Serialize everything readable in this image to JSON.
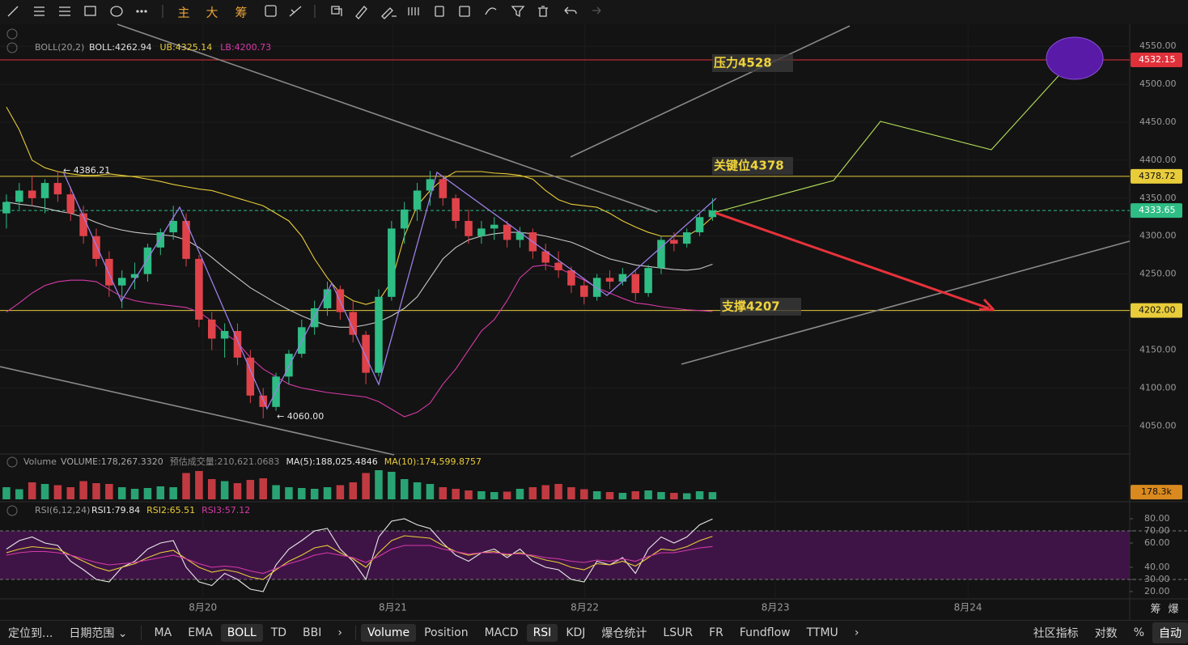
{
  "toolbar": {
    "labels": [
      "主",
      "大",
      "筹"
    ]
  },
  "chart_data": [
    {
      "type": "candlestick",
      "legend_title": "BOLL(20,2)",
      "x": [
        0,
        1,
        2,
        3,
        4,
        5,
        6,
        7,
        8,
        9,
        10,
        11,
        12,
        13,
        14,
        15,
        16,
        17,
        18,
        19,
        20,
        21,
        22,
        23,
        24,
        25,
        26,
        27,
        28,
        29,
        30,
        31,
        32,
        33,
        34,
        35,
        36,
        37,
        38,
        39,
        40,
        41,
        42,
        43,
        44,
        45,
        46,
        47,
        48,
        49,
        50,
        51,
        52,
        53,
        54,
        55
      ],
      "open": [
        4330,
        4345,
        4360,
        4350,
        4370,
        4355,
        4330,
        4300,
        4270,
        4235,
        4245,
        4250,
        4285,
        4305,
        4320,
        4270,
        4190,
        4165,
        4175,
        4140,
        4090,
        4075,
        4115,
        4145,
        4180,
        4205,
        4230,
        4200,
        4170,
        4120,
        4220,
        4310,
        4335,
        4360,
        4375,
        4350,
        4320,
        4300,
        4310,
        4315,
        4295,
        4305,
        4280,
        4265,
        4255,
        4235,
        4220,
        4245,
        4240,
        4250,
        4225,
        4258,
        4295,
        4290,
        4305,
        4325
      ],
      "high": [
        4355,
        4370,
        4380,
        4375,
        4386.21,
        4365,
        4340,
        4310,
        4280,
        4255,
        4265,
        4290,
        4310,
        4340,
        4330,
        4275,
        4200,
        4185,
        4185,
        4150,
        4100,
        4120,
        4150,
        4190,
        4215,
        4240,
        4235,
        4215,
        4175,
        4230,
        4320,
        4345,
        4370,
        4386,
        4380,
        4355,
        4335,
        4320,
        4325,
        4320,
        4312,
        4310,
        4290,
        4280,
        4260,
        4245,
        4250,
        4255,
        4258,
        4255,
        4262,
        4300,
        4305,
        4310,
        4330,
        4350
      ],
      "low": [
        4310,
        4335,
        4340,
        4330,
        4345,
        4320,
        4290,
        4260,
        4220,
        4205,
        4230,
        4240,
        4275,
        4295,
        4260,
        4180,
        4150,
        4140,
        4130,
        4080,
        4060,
        4070,
        4105,
        4140,
        4170,
        4195,
        4190,
        4160,
        4105,
        4115,
        4215,
        4290,
        4320,
        4340,
        4340,
        4310,
        4290,
        4290,
        4295,
        4285,
        4285,
        4270,
        4255,
        4245,
        4225,
        4210,
        4215,
        4230,
        4235,
        4215,
        4220,
        4250,
        4280,
        4285,
        4300,
        4320
      ],
      "close": [
        4345,
        4360,
        4350,
        4370,
        4355,
        4330,
        4300,
        4270,
        4235,
        4245,
        4250,
        4285,
        4305,
        4320,
        4270,
        4190,
        4165,
        4175,
        4140,
        4090,
        4075,
        4115,
        4145,
        4180,
        4205,
        4230,
        4200,
        4170,
        4120,
        4220,
        4310,
        4335,
        4360,
        4375,
        4350,
        4320,
        4300,
        4310,
        4315,
        4295,
        4305,
        4280,
        4265,
        4255,
        4235,
        4220,
        4245,
        4240,
        4250,
        4225,
        4258,
        4295,
        4290,
        4305,
        4325,
        4333.65
      ],
      "up_color": "#2ebd85",
      "down_color": "#e0424a",
      "series": [
        {
          "name": "BOLL:4262.94",
          "color": "#c8c8c8",
          "values": [
            4345,
            4342,
            4340,
            4337,
            4333,
            4330,
            4325,
            4318,
            4312,
            4308,
            4305,
            4303,
            4302,
            4300,
            4295,
            4285,
            4272,
            4258,
            4245,
            4232,
            4222,
            4212,
            4203,
            4195,
            4188,
            4182,
            4180,
            4180,
            4183,
            4187,
            4195,
            4205,
            4220,
            4245,
            4270,
            4285,
            4295,
            4300,
            4303,
            4305,
            4305,
            4303,
            4300,
            4296,
            4292,
            4285,
            4277,
            4270,
            4266,
            4262,
            4260,
            4258,
            4256,
            4255,
            4257,
            4262.94
          ]
        },
        {
          "name": "UB:4325.14",
          "color": "#e8cc3a",
          "values": [
            4470,
            4440,
            4400,
            4390,
            4385,
            4382,
            4380,
            4380,
            4382,
            4380,
            4378,
            4375,
            4372,
            4368,
            4365,
            4362,
            4360,
            4355,
            4350,
            4345,
            4340,
            4330,
            4320,
            4300,
            4270,
            4245,
            4225,
            4215,
            4210,
            4215,
            4240,
            4300,
            4340,
            4360,
            4375,
            4385,
            4385,
            4385,
            4383,
            4382,
            4380,
            4375,
            4360,
            4348,
            4342,
            4340,
            4338,
            4330,
            4320,
            4312,
            4305,
            4300,
            4300,
            4300,
            4310,
            4325.14
          ]
        },
        {
          "name": "LB:4200.73",
          "color": "#d63aa8",
          "values": [
            4200,
            4212,
            4225,
            4235,
            4240,
            4242,
            4242,
            4240,
            4230,
            4220,
            4215,
            4212,
            4210,
            4208,
            4206,
            4200,
            4188,
            4172,
            4160,
            4140,
            4125,
            4115,
            4105,
            4100,
            4097,
            4094,
            4092,
            4090,
            4088,
            4082,
            4072,
            4062,
            4068,
            4080,
            4105,
            4125,
            4150,
            4175,
            4190,
            4215,
            4245,
            4260,
            4262,
            4258,
            4250,
            4242,
            4232,
            4225,
            4218,
            4212,
            4210,
            4207,
            4205,
            4203,
            4202,
            4200.73
          ]
        }
      ],
      "xlim": [
        -0.5,
        87.5
      ],
      "xticks": [
        {
          "value": 15.3,
          "label": "8月20"
        },
        {
          "value": 30.1,
          "label": "8月21"
        },
        {
          "value": 45.05,
          "label": "8月22"
        },
        {
          "value": 59.9,
          "label": "8月23"
        },
        {
          "value": 74.9,
          "label": "8月24"
        }
      ],
      "ylim": [
        4013,
        4579
      ],
      "yticks": [
        {
          "value": 4050,
          "label": "4050.00"
        },
        {
          "value": 4100,
          "label": "4100.00"
        },
        {
          "value": 4150,
          "label": "4150.00"
        },
        {
          "value": 4200,
          "label": "4200.00"
        },
        {
          "value": 4250,
          "label": "4250.00"
        },
        {
          "value": 4300,
          "label": "4300.00"
        },
        {
          "value": 4350,
          "label": "4350.00"
        },
        {
          "value": 4400,
          "label": "4400.00"
        },
        {
          "value": 4450,
          "label": "4450.00"
        },
        {
          "value": 4500,
          "label": "4500.00"
        },
        {
          "value": 4550,
          "label": "4550.00"
        }
      ],
      "levels": [
        {
          "value": 4532.15,
          "label": "4532.15",
          "color": "#e0303a",
          "dashed": false
        },
        {
          "value": 4378.72,
          "label": "4378.72",
          "color": "#e8cc3a",
          "dashed": false
        },
        {
          "value": 4333.65,
          "label": "4333.65",
          "color": "#2ebd85",
          "dashed": true
        },
        {
          "value": 4202,
          "label": "4202.00",
          "color": "#e8cc3a",
          "dashed": false
        }
      ],
      "annotations": [
        "压力4528",
        "关键位4378",
        "支撑4207"
      ],
      "extremes": [
        "← 4386.21",
        "← 4060.00"
      ]
    },
    {
      "type": "bar",
      "legend_title": "Volume",
      "legend": [
        {
          "text": "VOLUME:178,267.3320",
          "color": "#a8a8a8"
        },
        {
          "text": "预估成交量:210,621.0683",
          "color": "#8a8a8a"
        },
        {
          "text": "MA(5):188,025.4846",
          "color": "#e8e8e8"
        },
        {
          "text": "MA(10):174,599.8757",
          "color": "#e8cc3a"
        }
      ],
      "values": [
        300000,
        250000,
        420000,
        380000,
        350000,
        300000,
        450000,
        400000,
        380000,
        300000,
        260000,
        280000,
        320000,
        300000,
        650000,
        700000,
        500000,
        450000,
        400000,
        480000,
        520000,
        350000,
        300000,
        280000,
        260000,
        300000,
        350000,
        420000,
        650000,
        720000,
        680000,
        500000,
        420000,
        380000,
        300000,
        260000,
        220000,
        200000,
        180000,
        190000,
        260000,
        300000,
        350000,
        380000,
        300000,
        250000,
        200000,
        180000,
        160000,
        200000,
        220000,
        180000,
        160000,
        150000,
        200000,
        178267
      ],
      "ylim": [
        0,
        780000
      ],
      "last_label": "178.3k",
      "last_color": "#d9891e"
    },
    {
      "type": "line",
      "legend_title": "RSI(6,12,24)",
      "series": [
        {
          "name": "RSI1:79.84",
          "color": "#e8e8e8",
          "values": [
            55,
            62,
            65,
            60,
            58,
            45,
            38,
            30,
            28,
            40,
            45,
            55,
            60,
            62,
            40,
            28,
            25,
            35,
            30,
            22,
            20,
            42,
            55,
            62,
            70,
            72,
            55,
            45,
            30,
            65,
            78,
            80,
            75,
            72,
            60,
            50,
            45,
            52,
            55,
            48,
            55,
            45,
            40,
            38,
            30,
            28,
            45,
            42,
            48,
            35,
            55,
            65,
            60,
            65,
            75,
            79.84
          ]
        },
        {
          "name": "RSI2:65.51",
          "color": "#e8cc3a",
          "values": [
            52,
            55,
            57,
            56,
            55,
            50,
            45,
            40,
            37,
            40,
            43,
            48,
            52,
            54,
            47,
            40,
            36,
            38,
            36,
            32,
            30,
            38,
            45,
            50,
            56,
            58,
            52,
            47,
            40,
            52,
            62,
            66,
            65,
            64,
            58,
            53,
            50,
            52,
            53,
            50,
            52,
            49,
            46,
            44,
            40,
            38,
            43,
            42,
            45,
            41,
            48,
            55,
            54,
            57,
            62,
            65.51
          ]
        },
        {
          "name": "RSI3:57.12",
          "color": "#d63aa8",
          "values": [
            50,
            52,
            53,
            53,
            52,
            50,
            47,
            44,
            42,
            43,
            44,
            46,
            48,
            50,
            47,
            43,
            40,
            41,
            40,
            37,
            35,
            39,
            43,
            46,
            50,
            52,
            50,
            48,
            44,
            49,
            55,
            58,
            58,
            58,
            55,
            53,
            51,
            52,
            52,
            51,
            51,
            50,
            48,
            47,
            45,
            44,
            46,
            45,
            47,
            45,
            49,
            52,
            52,
            54,
            56,
            57.12
          ]
        }
      ],
      "band": [
        30,
        70
      ],
      "band_color": "#3e1446",
      "ylim": [
        14,
        84
      ],
      "yticks": [
        {
          "value": 20,
          "label": "20.00"
        },
        {
          "value": 30,
          "label": "30.00"
        },
        {
          "value": 40,
          "label": "40.00"
        },
        {
          "value": 60,
          "label": "60.00"
        },
        {
          "value": 70,
          "label": "70.00"
        },
        {
          "value": 80,
          "label": "80.00"
        }
      ]
    }
  ],
  "axis_corner": [
    "筹",
    "爆"
  ],
  "bottom_bar": {
    "left": [
      "定位到...",
      "日期范围 ⌄"
    ],
    "main_indicators": [
      "MA",
      "EMA",
      "BOLL",
      "TD",
      "BBI",
      "›"
    ],
    "sub_indicators": [
      "Volume",
      "Position",
      "MACD",
      "RSI",
      "KDJ",
      "爆仓统计",
      "LSUR",
      "FR",
      "Fundflow",
      "TTMU",
      "›"
    ],
    "right": [
      "社区指标",
      "对数",
      "%",
      "自动"
    ]
  }
}
